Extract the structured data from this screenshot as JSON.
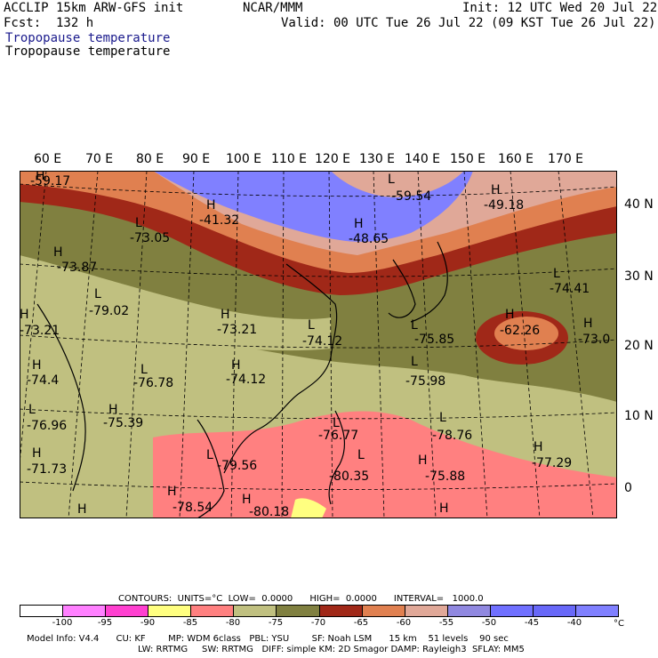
{
  "header": {
    "model_line": "ACCLIP 15km ARW-GFS init",
    "org": "NCAR/MMM",
    "init": "Init: 12 UTC Wed 20 Jul 22",
    "fcst": "Fcst:  132 h",
    "valid": "Valid: 00 UTC Tue 26 Jul 22 (09 KST Tue 26 Jul 22)",
    "field_title_shaded": "Tropopause temperature",
    "field_title_contour": "Tropopause temperature"
  },
  "axes": {
    "lon_labels": [
      "60 E",
      "70 E",
      "80 E",
      "90 E",
      "100 E",
      "110 E",
      "120 E",
      "130 E",
      "140 E",
      "150 E",
      "160 E",
      "170 E"
    ],
    "lat_labels": [
      "40 N",
      "30 N",
      "20 N",
      "10 N",
      "0"
    ]
  },
  "map_labels": [
    {
      "mark": "H",
      "value": "-59.17"
    },
    {
      "mark": "H",
      "value": "-41.32"
    },
    {
      "mark": "L",
      "value": "-59.54"
    },
    {
      "mark": "H",
      "value": "-49.18"
    },
    {
      "mark": "H",
      "value": "-48.65"
    },
    {
      "mark": "L",
      "value": "-73.05"
    },
    {
      "mark": "H",
      "value": "-73.87"
    },
    {
      "mark": "L",
      "value": "-74.41"
    },
    {
      "mark": "L",
      "value": "-79.02"
    },
    {
      "mark": "H",
      "value": "-73.21"
    },
    {
      "mark": "L",
      "value": "-74.12"
    },
    {
      "mark": "L",
      "value": "-75.85"
    },
    {
      "mark": "H",
      "value": "-62.26"
    },
    {
      "mark": "H",
      "value": "-73.0"
    },
    {
      "mark": "H",
      "value": "-73.21"
    },
    {
      "mark": "H",
      "value": "-74.4"
    },
    {
      "mark": "L",
      "value": "-76.78"
    },
    {
      "mark": "H",
      "value": "-74.12"
    },
    {
      "mark": "L",
      "value": "-75.98"
    },
    {
      "mark": "L",
      "value": "-76.96"
    },
    {
      "mark": "H",
      "value": "-75.39"
    },
    {
      "mark": "L",
      "value": "-78.76"
    },
    {
      "mark": "L",
      "value": "-76.77"
    },
    {
      "mark": "H",
      "value": "-71.73"
    },
    {
      "mark": "L",
      "value": "-79.56"
    },
    {
      "mark": "L",
      "value": "-80.35"
    },
    {
      "mark": "H",
      "value": "-75.88"
    },
    {
      "mark": "H",
      "value": "-77.29"
    },
    {
      "mark": "H",
      "value": "-78.54"
    },
    {
      "mark": "H",
      "value": "-80.18"
    },
    {
      "mark": "H",
      "value": ""
    },
    {
      "mark": "H",
      "value": ""
    }
  ],
  "legend": {
    "colors": [
      "#ffffff",
      "#ff80ff",
      "#ff40d0",
      "#ffff80",
      "#ff8080",
      "#c0c080",
      "#808040",
      "#a02818",
      "#e08050",
      "#e0a898",
      "#9088e0",
      "#7070ff",
      "#6868f8",
      "#8080ff"
    ],
    "labels": [
      "-100",
      "-95",
      "-90",
      "-85",
      "-80",
      "-75",
      "-70",
      "-65",
      "-60",
      "-55",
      "-50",
      "-45",
      "-40"
    ],
    "unit": "°C",
    "contours_line": "CONTOURS:  UNITS=°C  LOW=  0.0000      HIGH=  0.0000      INTERVAL=   1000.0"
  },
  "footer": {
    "line1": "Model Info: V4.4      CU: KF        MP: WDM 6class   PBL: YSU        SF: Noah LSM      15 km    51 levels    90 sec",
    "line2": "LW: RRTMG     SW: RRTMG   DIFF: simple KM: 2D Smagor DAMP: Rayleigh3  SFLAY: MM5"
  }
}
